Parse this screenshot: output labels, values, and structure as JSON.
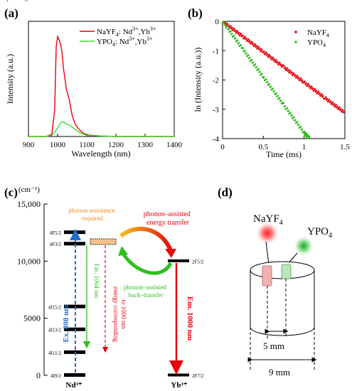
{
  "panels": {
    "a": {
      "label": "(a)"
    },
    "b": {
      "label": "(b)"
    },
    "c": {
      "label": "(c)"
    },
    "d": {
      "label": "(d)"
    }
  },
  "chart_data": [
    {
      "panel": "a",
      "type": "line",
      "xlabel": "Wavelength (nm)",
      "ylabel": "Intensity (a.u.)",
      "xlim": [
        900,
        1400
      ],
      "xticks": [
        900,
        1000,
        1100,
        1200,
        1300,
        1400
      ],
      "ylim": [
        0,
        1
      ],
      "grid": false,
      "legend_position": "top-right",
      "series": [
        {
          "name": "NaYF4: Nd3+, Yb3+",
          "color": "#e8000b",
          "x": [
            900,
            960,
            980,
            990,
            995,
            1000,
            1005,
            1010,
            1015,
            1020,
            1025,
            1030,
            1040,
            1050,
            1060,
            1070,
            1080,
            1090,
            1100,
            1150,
            1200,
            1300,
            1400
          ],
          "y": [
            0.0,
            0.0,
            0.02,
            0.25,
            0.85,
            0.95,
            0.92,
            0.88,
            0.8,
            0.65,
            0.55,
            0.45,
            0.35,
            0.2,
            0.12,
            0.08,
            0.05,
            0.03,
            0.015,
            0.005,
            0.0,
            0.0,
            0.0
          ]
        },
        {
          "name": "YPO4: Nd3+, Yb3+",
          "color": "#3ddc2b",
          "x": [
            900,
            960,
            980,
            990,
            1000,
            1010,
            1020,
            1030,
            1040,
            1050,
            1060,
            1070,
            1080,
            1090,
            1100,
            1150,
            1200,
            1300,
            1400
          ],
          "y": [
            0.0,
            0.0,
            0.01,
            0.04,
            0.08,
            0.13,
            0.14,
            0.12,
            0.11,
            0.09,
            0.07,
            0.05,
            0.03,
            0.02,
            0.01,
            0.005,
            0.0,
            0.0,
            0.0
          ]
        }
      ]
    },
    {
      "panel": "b",
      "type": "scatter",
      "xlabel": "Time (ms)",
      "ylabel": "ln (Intensity (a.u.))",
      "xlim": [
        0,
        1.5
      ],
      "ylim": [
        -4,
        0
      ],
      "xticks": [
        0,
        0.5,
        1,
        1.5
      ],
      "yticks": [
        0,
        -1,
        -2,
        -3,
        -4
      ],
      "grid": false,
      "legend_position": "top-right",
      "series": [
        {
          "name": "NaYF4",
          "color": "#e8000b",
          "x": [
            0,
            0.25,
            0.5,
            0.75,
            1.0,
            1.25,
            1.5
          ],
          "y": [
            0,
            -0.52,
            -1.04,
            -1.56,
            -2.08,
            -2.6,
            -3.12
          ]
        },
        {
          "name": "YPO4",
          "color": "#2fbf1f",
          "x": [
            0,
            0.25,
            0.5,
            0.75,
            1.0,
            1.07
          ],
          "y": [
            0,
            -0.95,
            -1.9,
            -2.85,
            -3.8,
            -4.0
          ]
        }
      ]
    },
    {
      "panel": "c",
      "type": "diagram",
      "yunit": "(cm⁻¹)",
      "ylim": [
        0,
        15000
      ],
      "yticks": [
        "0",
        "5000",
        "10,000",
        "15,000"
      ],
      "levels_nd": [
        {
          "label": "4F5/2",
          "energy": 12500
        },
        {
          "label": "4F3/2",
          "energy": 11500
        },
        {
          "label": "4I15/2",
          "energy": 6000
        },
        {
          "label": "4I13/2",
          "energy": 4000
        },
        {
          "label": "4I11/2",
          "energy": 2000
        },
        {
          "label": "4I9/2",
          "energy": 0
        }
      ],
      "levels_yb": [
        {
          "label": "2F5/2",
          "energy": 10000
        },
        {
          "label": "2F7/2",
          "energy": 0
        }
      ],
      "labels": {
        "phonon_assistance": [
          "phonon assistance",
          "required"
        ],
        "phonon_transfer": [
          "phonon–assisted",
          "energy transfer"
        ],
        "back_transfer": [
          "phonon–assisted",
          "back–transfer"
        ],
        "ex": "Ex. 808 nm",
        "em1064": "Em. 1064 nm",
        "energy_corr": [
          "energy corresponding",
          "to 1000 nm"
        ],
        "em1000": "Em. 1000 nm",
        "nd": "Nd³⁺",
        "yb": "Yb³⁺"
      }
    }
  ],
  "diagram_d": {
    "label_nayf4": "NaYF₄",
    "label_ypo4": "YPO₄",
    "dim_inner": "5 mm",
    "dim_outer": "9 mm"
  },
  "colors": {
    "red": "#e8000b",
    "green": "#2fbf1f",
    "blue": "#1f6fd1",
    "orange": "#f08a24"
  }
}
